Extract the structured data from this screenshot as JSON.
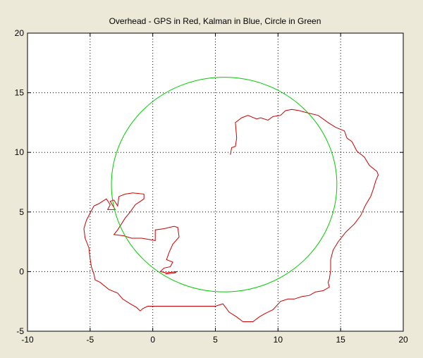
{
  "chart_data": {
    "type": "line",
    "title": "Overhead - GPS in Red, Kalman in Blue, Circle in Green",
    "xlabel": "",
    "ylabel": "",
    "xlim": [
      -10,
      20
    ],
    "ylim": [
      -5,
      20
    ],
    "x_ticks": [
      -10,
      -5,
      0,
      5,
      10,
      15,
      20
    ],
    "y_ticks": [
      -5,
      0,
      5,
      10,
      15,
      20
    ],
    "x_tick_labels": [
      "-10",
      "-5",
      "0",
      "5",
      "10",
      "15",
      "20"
    ],
    "y_tick_labels": [
      "-5",
      "0",
      "5",
      "10",
      "15",
      "20"
    ],
    "grid": true,
    "background": "#ffffff",
    "figure_background": "#ece9d8",
    "series": [
      {
        "color": "#cc0000",
        "style": "path",
        "points": [
          [
            6.2,
            9.8
          ],
          [
            6.3,
            10.4
          ],
          [
            6.6,
            10.5
          ],
          [
            6.7,
            11.2
          ],
          [
            6.6,
            12.5
          ],
          [
            7.1,
            12.9
          ],
          [
            7.6,
            13.1
          ],
          [
            8.3,
            12.8
          ],
          [
            8.6,
            12.9
          ],
          [
            9.2,
            12.7
          ],
          [
            9.6,
            13.0
          ],
          [
            10.2,
            13.1
          ],
          [
            10.6,
            13.5
          ],
          [
            11.1,
            13.6
          ],
          [
            11.7,
            13.5
          ],
          [
            12.4,
            13.3
          ],
          [
            13.2,
            13.1
          ],
          [
            14.0,
            12.5
          ],
          [
            14.6,
            12.1
          ],
          [
            15.3,
            11.8
          ],
          [
            15.5,
            11.2
          ],
          [
            15.9,
            10.9
          ],
          [
            16.3,
            10.1
          ],
          [
            16.9,
            9.6
          ],
          [
            17.3,
            8.9
          ],
          [
            17.9,
            8.4
          ],
          [
            18.0,
            8.1
          ],
          [
            17.8,
            7.6
          ],
          [
            17.6,
            6.9
          ],
          [
            17.4,
            6.3
          ],
          [
            17.0,
            5.6
          ],
          [
            16.6,
            4.7
          ],
          [
            16.1,
            4.0
          ],
          [
            15.4,
            3.3
          ],
          [
            14.8,
            2.5
          ],
          [
            14.4,
            1.8
          ],
          [
            14.2,
            1.0
          ],
          [
            14.2,
            0.1
          ],
          [
            14.1,
            -0.6
          ],
          [
            14.0,
            -0.9
          ],
          [
            14.1,
            -1.3
          ],
          [
            13.6,
            -1.6
          ],
          [
            13.0,
            -1.7
          ],
          [
            12.5,
            -2.0
          ],
          [
            11.9,
            -2.1
          ],
          [
            11.3,
            -2.3
          ],
          [
            10.8,
            -2.3
          ],
          [
            10.2,
            -2.5
          ],
          [
            9.6,
            -3.2
          ],
          [
            9.0,
            -3.5
          ],
          [
            8.5,
            -3.8
          ],
          [
            8.0,
            -4.2
          ],
          [
            7.2,
            -4.2
          ],
          [
            6.7,
            -3.8
          ],
          [
            6.1,
            -3.4
          ],
          [
            5.6,
            -2.7
          ],
          [
            5.0,
            -2.9
          ],
          [
            4.0,
            -2.9
          ],
          [
            2.6,
            -2.9
          ],
          [
            1.2,
            -2.9
          ],
          [
            -0.4,
            -2.9
          ],
          [
            -0.8,
            -3.1
          ],
          [
            -1.0,
            -3.3
          ],
          [
            -1.3,
            -3.0
          ],
          [
            -1.8,
            -2.7
          ],
          [
            -2.4,
            -2.3
          ],
          [
            -2.8,
            -1.8
          ],
          [
            -3.5,
            -1.5
          ],
          [
            -4.2,
            -0.9
          ],
          [
            -4.6,
            -0.7
          ],
          [
            -4.7,
            -0.2
          ],
          [
            -4.9,
            0.4
          ],
          [
            -5.0,
            1.1
          ],
          [
            -5.1,
            2.0
          ],
          [
            -5.4,
            2.8
          ],
          [
            -5.5,
            3.6
          ],
          [
            -5.3,
            4.3
          ],
          [
            -5.0,
            4.9
          ],
          [
            -4.7,
            5.5
          ],
          [
            -4.3,
            5.7
          ],
          [
            -4.0,
            5.9
          ],
          [
            -3.7,
            6.1
          ],
          [
            -3.4,
            5.6
          ],
          [
            -3.6,
            5.2
          ],
          [
            -3.0,
            5.2
          ],
          [
            -3.4,
            5.9
          ],
          [
            -3.1,
            6.0
          ],
          [
            -2.8,
            5.5
          ],
          [
            -2.7,
            6.3
          ],
          [
            -2.2,
            6.5
          ],
          [
            -1.6,
            6.6
          ],
          [
            -0.7,
            6.5
          ],
          [
            -0.7,
            6.1
          ],
          [
            -1.4,
            5.6
          ],
          [
            -1.8,
            5.0
          ],
          [
            -2.2,
            4.5
          ],
          [
            -2.5,
            4.0
          ],
          [
            -2.8,
            3.5
          ],
          [
            -3.1,
            3.1
          ],
          [
            -2.3,
            3.0
          ],
          [
            -1.7,
            2.8
          ],
          [
            -0.9,
            2.8
          ],
          [
            -0.3,
            2.7
          ],
          [
            0.2,
            2.6
          ],
          [
            0.2,
            3.5
          ],
          [
            0.9,
            3.6
          ],
          [
            1.7,
            3.8
          ],
          [
            2.0,
            3.7
          ],
          [
            2.1,
            2.9
          ],
          [
            1.6,
            2.3
          ],
          [
            1.3,
            1.6
          ],
          [
            1.1,
            1.0
          ],
          [
            1.6,
            0.8
          ],
          [
            1.4,
            0.4
          ],
          [
            0.9,
            0.3
          ],
          [
            0.6,
            0.0
          ],
          [
            1.1,
            -0.1
          ],
          [
            1.9,
            0.0
          ],
          [
            1.8,
            -0.1
          ],
          [
            1.0,
            -0.2
          ]
        ]
      },
      {
        "color": "#00cc00",
        "style": "circle",
        "center": [
          5.7,
          7.3
        ],
        "radius": 9.0
      }
    ]
  }
}
